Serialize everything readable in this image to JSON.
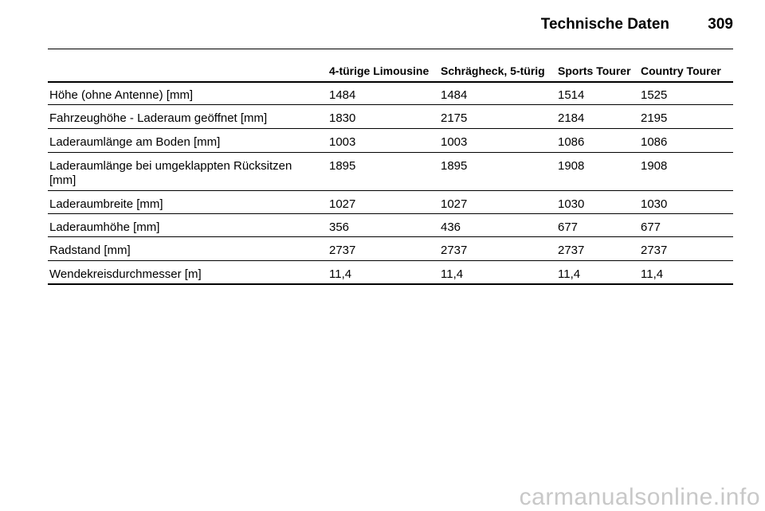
{
  "header": {
    "title": "Technische Daten",
    "page_number": "309"
  },
  "table": {
    "columns": [
      "4-türige Limousine",
      "Schrägheck, 5-türig",
      "Sports Tourer",
      "Country Tourer"
    ],
    "rows": [
      [
        "Höhe (ohne Antenne) [mm]",
        "1484",
        "1484",
        "1514",
        "1525"
      ],
      [
        "Fahrzeughöhe - Laderaum geöffnet [mm]",
        "1830",
        "2175",
        "2184",
        "2195"
      ],
      [
        "Laderaumlänge am Boden [mm]",
        "1003",
        "1003",
        "1086",
        "1086"
      ],
      [
        "Laderaumlänge bei umgeklappten Rücksitzen [mm]",
        "1895",
        "1895",
        "1908",
        "1908"
      ],
      [
        "Laderaumbreite [mm]",
        "1027",
        "1027",
        "1030",
        "1030"
      ],
      [
        "Laderaumhöhe [mm]",
        "356",
        "436",
        "677",
        "677"
      ],
      [
        "Radstand [mm]",
        "2737",
        "2737",
        "2737",
        "2737"
      ],
      [
        "Wendekreisdurchmesser [m]",
        "11,4",
        "11,4",
        "11,4",
        "11,4"
      ]
    ]
  },
  "watermark": "carmanualsonline.info"
}
